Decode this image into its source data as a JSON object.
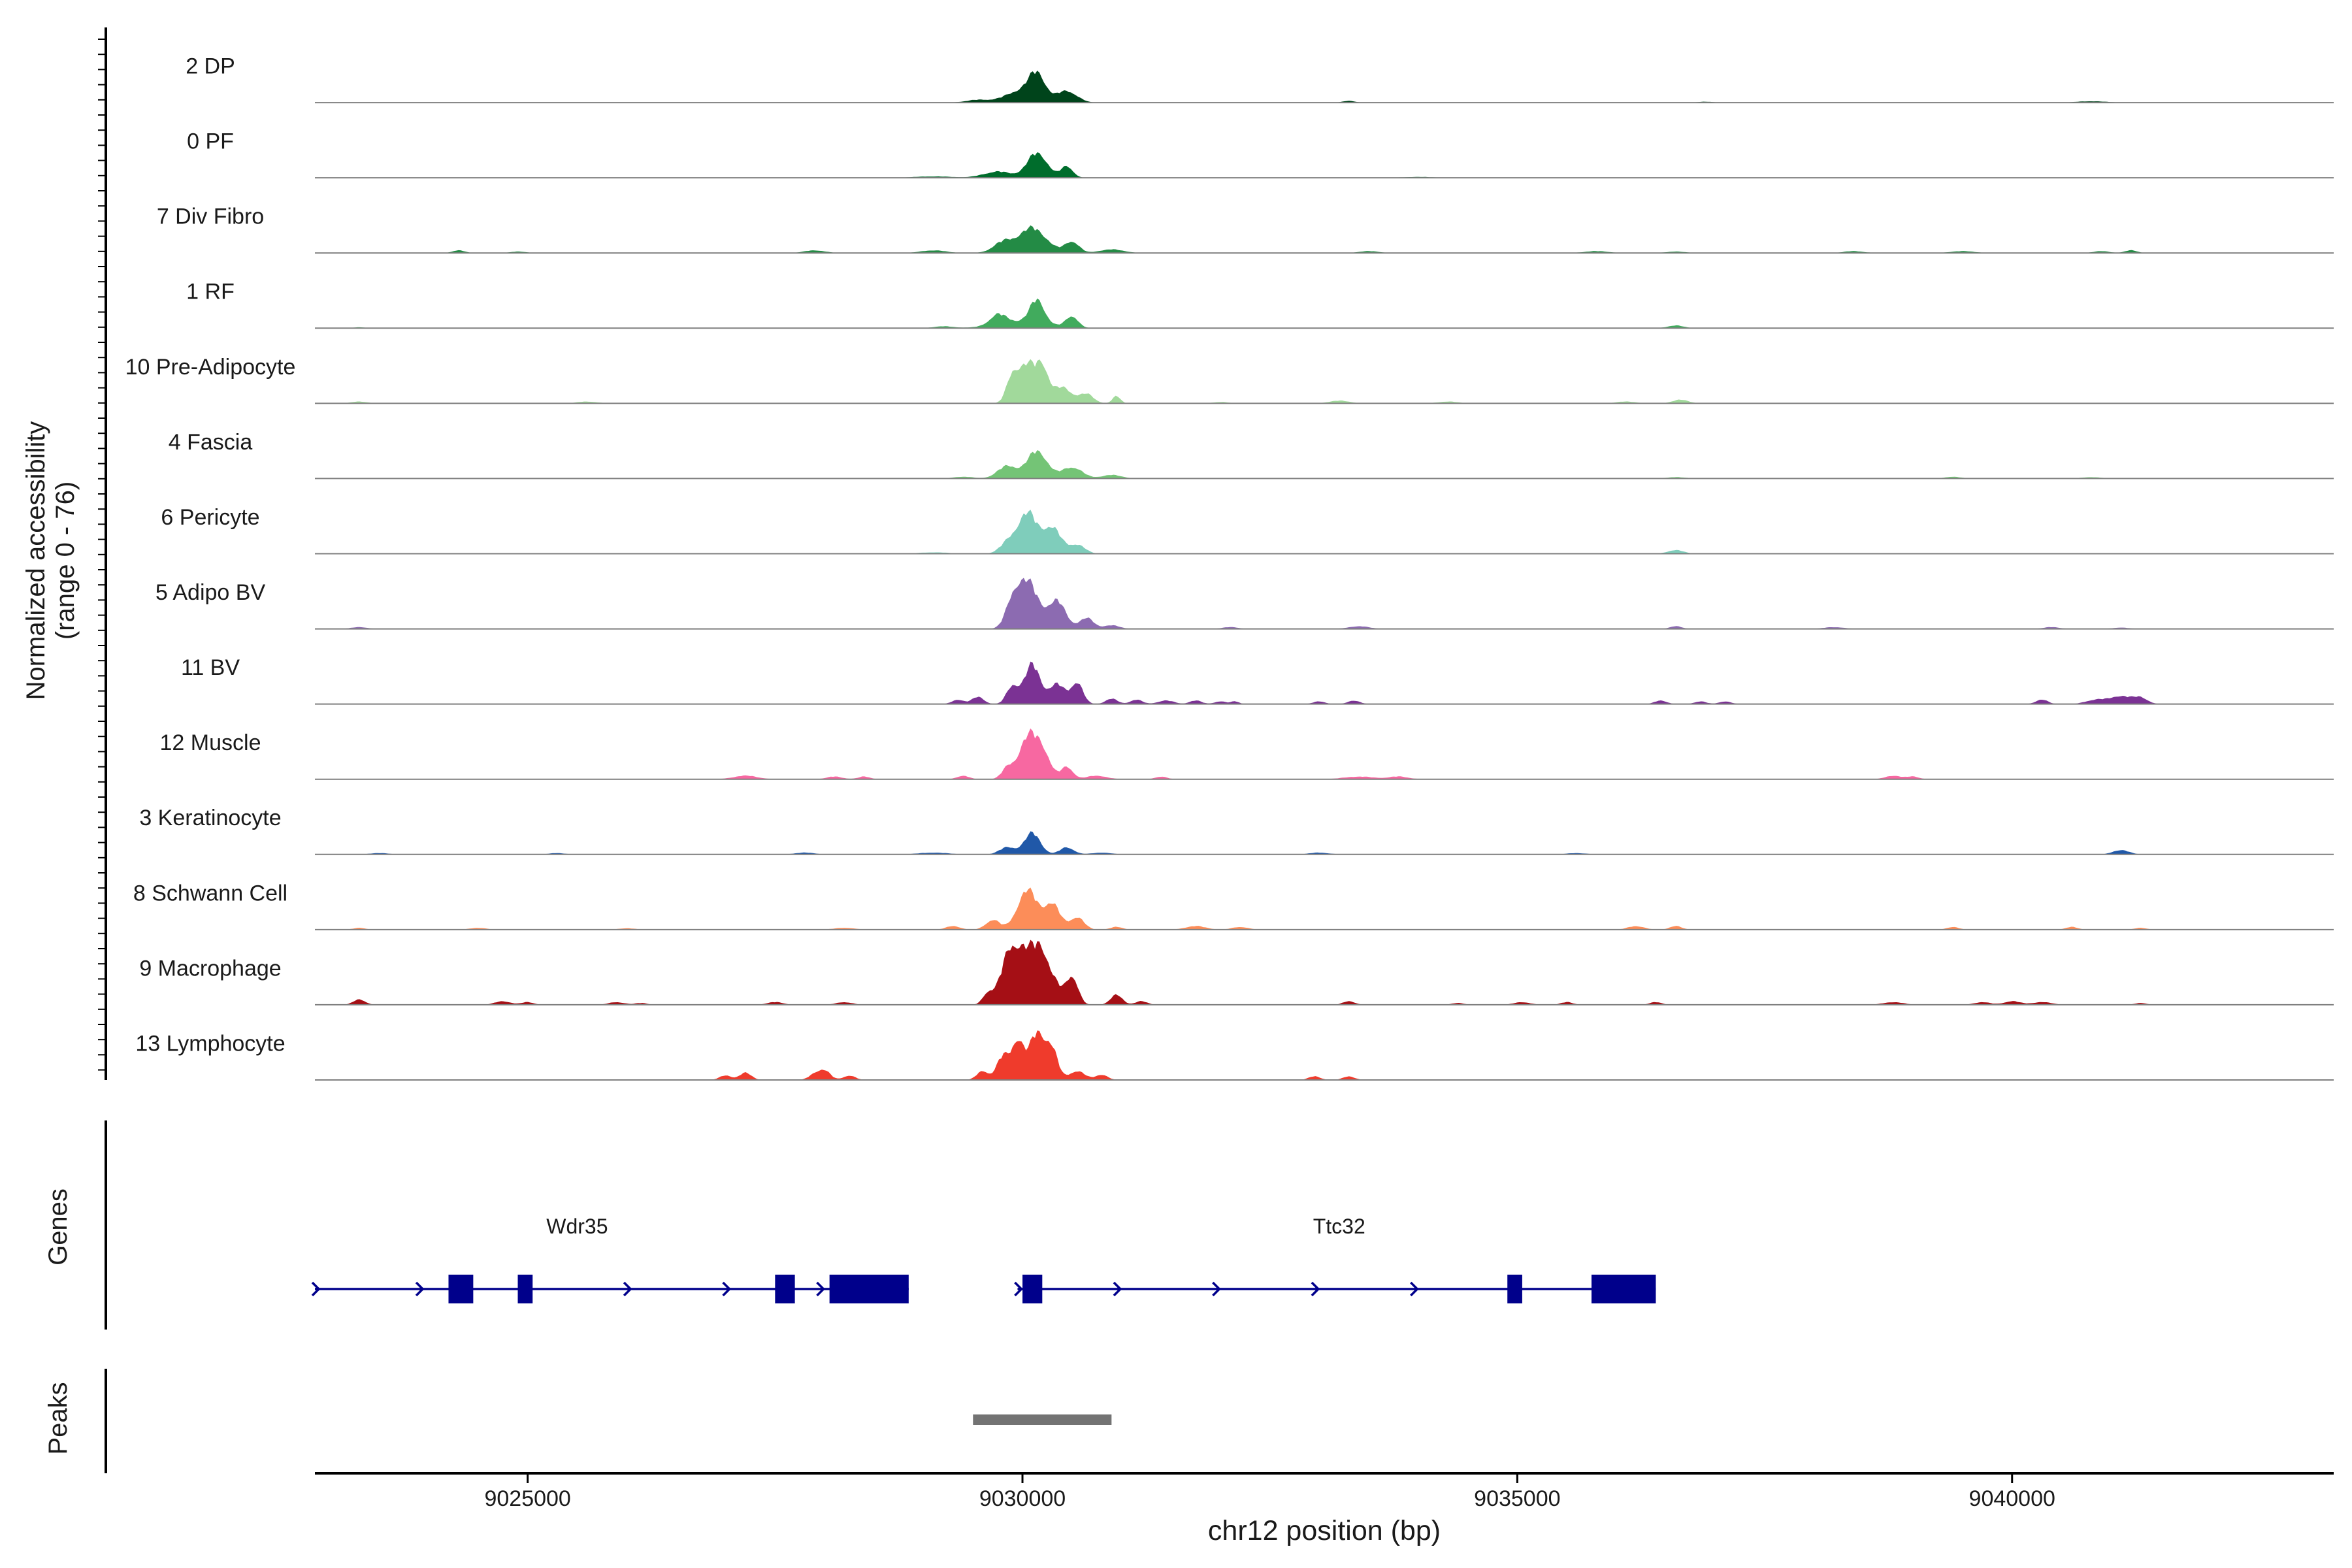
{
  "chart_data": {
    "type": "area",
    "ylabel": "Normalized accessibility\n(range 0 - 76)",
    "yrange": [
      0,
      76
    ],
    "xlabel": "chr12 position (bp)",
    "xlim": [
      9022850,
      9043250
    ],
    "xticks": [
      9025000,
      9030000,
      9035000,
      9040000
    ],
    "xtick_labels": [
      "9025000",
      "9030000",
      "9035000",
      "9040000"
    ],
    "tracks": [
      {
        "name": "2 DP",
        "color": "#00441b",
        "peaks": [
          [
            9030000,
            14,
            160
          ],
          [
            9030150,
            26,
            80
          ],
          [
            9030450,
            13,
            100
          ],
          [
            9029550,
            3,
            120
          ],
          [
            9033300,
            2,
            60
          ],
          [
            9036900,
            1,
            80
          ],
          [
            9040800,
            1.5,
            150
          ]
        ]
      },
      {
        "name": "0 PF",
        "color": "#006d2c",
        "peaks": [
          [
            9030150,
            28,
            100
          ],
          [
            9029750,
            7,
            140
          ],
          [
            9030450,
            13,
            60
          ],
          [
            9029100,
            1.5,
            200
          ],
          [
            9034000,
            1,
            150
          ]
        ]
      },
      {
        "name": "7 Div Fibro",
        "color": "#238b45",
        "peaks": [
          [
            9030100,
            28,
            140
          ],
          [
            9029800,
            11,
            100
          ],
          [
            9030500,
            13,
            70
          ],
          [
            9030900,
            4,
            120
          ],
          [
            9029100,
            3,
            120
          ],
          [
            9024300,
            3,
            60
          ],
          [
            9027900,
            3,
            100
          ],
          [
            9033500,
            2,
            100
          ],
          [
            9035800,
            2,
            120
          ],
          [
            9038400,
            2,
            100
          ],
          [
            9039500,
            2,
            120
          ],
          [
            9040900,
            2,
            80
          ],
          [
            9041200,
            3,
            60
          ],
          [
            9024900,
            1.5,
            80
          ],
          [
            9036600,
            1.5,
            100
          ]
        ]
      },
      {
        "name": "1 RF",
        "color": "#41ab5d",
        "peaks": [
          [
            9030150,
            26,
            70
          ],
          [
            9029750,
            11,
            80
          ],
          [
            9030500,
            13,
            60
          ],
          [
            9030000,
            8,
            250
          ],
          [
            9036600,
            3,
            80
          ],
          [
            9029200,
            2,
            100
          ],
          [
            9023300,
            1,
            60
          ]
        ]
      },
      {
        "name": "10 Pre-Adipocyte",
        "color": "#a1d99b",
        "peaks": [
          [
            9030050,
            42,
            80
          ],
          [
            9030200,
            38,
            60
          ],
          [
            9029900,
            30,
            60
          ],
          [
            9030400,
            18,
            100
          ],
          [
            9030650,
            10,
            70
          ],
          [
            9030950,
            8,
            40
          ],
          [
            9036650,
            4,
            80
          ],
          [
            9023300,
            2,
            80
          ],
          [
            9025600,
            2,
            100
          ],
          [
            9033200,
            3,
            100
          ],
          [
            9034300,
            2,
            100
          ],
          [
            9036100,
            2,
            100
          ],
          [
            9032000,
            1.5,
            80
          ]
        ]
      },
      {
        "name": "4 Fascia",
        "color": "#74c476",
        "peaks": [
          [
            9030150,
            31,
            100
          ],
          [
            9029850,
            14,
            100
          ],
          [
            9030500,
            13,
            100
          ],
          [
            9030900,
            4,
            100
          ],
          [
            9029400,
            2,
            100
          ],
          [
            9039400,
            2,
            80
          ],
          [
            9040800,
            1.5,
            100
          ],
          [
            9036600,
            1.5,
            100
          ]
        ]
      },
      {
        "name": "6 Pericyte",
        "color": "#7fcdbb",
        "peaks": [
          [
            9030050,
            45,
            100
          ],
          [
            9030300,
            28,
            90
          ],
          [
            9030550,
            10,
            80
          ],
          [
            9029850,
            11,
            80
          ],
          [
            9036600,
            4,
            80
          ],
          [
            9029100,
            1.5,
            150
          ]
        ]
      },
      {
        "name": "5 Adipo BV",
        "color": "#8c6bb1",
        "peaks": [
          [
            9030050,
            52,
            110
          ],
          [
            9029900,
            22,
            70
          ],
          [
            9030350,
            30,
            90
          ],
          [
            9030650,
            12,
            70
          ],
          [
            9030900,
            4,
            80
          ],
          [
            9023300,
            2,
            80
          ],
          [
            9032100,
            2,
            80
          ],
          [
            9033400,
            3,
            100
          ],
          [
            9036600,
            3,
            60
          ],
          [
            9038200,
            2,
            100
          ],
          [
            9040400,
            2,
            80
          ],
          [
            9041100,
            1.5,
            80
          ]
        ]
      },
      {
        "name": "11 BV",
        "color": "#7b3294",
        "peaks": [
          [
            9030100,
            44,
            80
          ],
          [
            9029900,
            20,
            60
          ],
          [
            9030350,
            22,
            80
          ],
          [
            9030550,
            24,
            60
          ],
          [
            9029550,
            8,
            60
          ],
          [
            9029350,
            5,
            60
          ],
          [
            9030900,
            6,
            60
          ],
          [
            9031150,
            5,
            60
          ],
          [
            9031450,
            4,
            80
          ],
          [
            9031750,
            4,
            60
          ],
          [
            9032000,
            3,
            60
          ],
          [
            9032150,
            3,
            40
          ],
          [
            9033000,
            3,
            60
          ],
          [
            9033350,
            4,
            60
          ],
          [
            9036450,
            4,
            60
          ],
          [
            9036850,
            3,
            60
          ],
          [
            9037100,
            3,
            60
          ],
          [
            9040300,
            5,
            60
          ],
          [
            9040850,
            5,
            100
          ],
          [
            9041100,
            9,
            100
          ],
          [
            9041300,
            7,
            70
          ]
        ]
      },
      {
        "name": "12 Muscle",
        "color": "#f768a1",
        "peaks": [
          [
            9030050,
            44,
            90
          ],
          [
            9030200,
            30,
            80
          ],
          [
            9030450,
            14,
            60
          ],
          [
            9029850,
            12,
            60
          ],
          [
            9029400,
            4,
            60
          ],
          [
            9030750,
            4,
            100
          ],
          [
            9031400,
            3,
            60
          ],
          [
            9027200,
            4,
            120
          ],
          [
            9028100,
            3,
            80
          ],
          [
            9028400,
            3,
            60
          ],
          [
            9033400,
            3,
            150
          ],
          [
            9033800,
            3,
            100
          ],
          [
            9038800,
            4,
            80
          ],
          [
            9039000,
            3,
            60
          ]
        ]
      },
      {
        "name": "3 Keratinocyte",
        "color": "#2058a8",
        "peaks": [
          [
            9030100,
            24,
            80
          ],
          [
            9029850,
            8,
            80
          ],
          [
            9030450,
            8,
            70
          ],
          [
            9030800,
            2,
            100
          ],
          [
            9029100,
            2,
            150
          ],
          [
            9027800,
            2,
            100
          ],
          [
            9033000,
            2,
            100
          ],
          [
            9041100,
            5,
            80
          ],
          [
            9023500,
            1.5,
            100
          ],
          [
            9025300,
            1.5,
            80
          ],
          [
            9035600,
            1.5,
            100
          ]
        ]
      },
      {
        "name": "8 Schwann Cell",
        "color": "#fc8d59",
        "peaks": [
          [
            9030050,
            44,
            100
          ],
          [
            9030300,
            28,
            80
          ],
          [
            9030550,
            14,
            70
          ],
          [
            9029700,
            11,
            70
          ],
          [
            9029300,
            4,
            70
          ],
          [
            9030950,
            3,
            60
          ],
          [
            9031750,
            4,
            100
          ],
          [
            9032200,
            3,
            80
          ],
          [
            9036200,
            4,
            80
          ],
          [
            9036600,
            4,
            60
          ],
          [
            9039400,
            3,
            60
          ],
          [
            9040600,
            3,
            60
          ],
          [
            9041300,
            2,
            60
          ],
          [
            9023300,
            2,
            60
          ],
          [
            9024500,
            2,
            80
          ],
          [
            9028200,
            2,
            100
          ],
          [
            9026000,
            1.5,
            80
          ]
        ]
      },
      {
        "name": "9 Macrophage",
        "color": "#a50f15",
        "peaks": [
          [
            9030000,
            60,
            140
          ],
          [
            9030200,
            44,
            80
          ],
          [
            9029850,
            26,
            80
          ],
          [
            9030500,
            33,
            60
          ],
          [
            9030350,
            14,
            60
          ],
          [
            9029650,
            12,
            50
          ],
          [
            9030950,
            11,
            60
          ],
          [
            9031200,
            4,
            60
          ],
          [
            9023300,
            6,
            60
          ],
          [
            9024750,
            4,
            80
          ],
          [
            9025000,
            3,
            60
          ],
          [
            9025900,
            3,
            80
          ],
          [
            9026150,
            2,
            60
          ],
          [
            9027500,
            3,
            80
          ],
          [
            9028200,
            3,
            80
          ],
          [
            9033300,
            4,
            60
          ],
          [
            9034400,
            2,
            60
          ],
          [
            9035050,
            3,
            80
          ],
          [
            9035500,
            3,
            60
          ],
          [
            9036400,
            3,
            60
          ],
          [
            9038800,
            3,
            100
          ],
          [
            9039700,
            3,
            80
          ],
          [
            9040000,
            4,
            80
          ],
          [
            9040300,
            3,
            100
          ],
          [
            9041300,
            2,
            60
          ]
        ]
      },
      {
        "name": "13 Lymphocyte",
        "color": "#ef3b2c",
        "peaks": [
          [
            9030150,
            53,
            80
          ],
          [
            9029950,
            44,
            60
          ],
          [
            9030300,
            30,
            60
          ],
          [
            9029800,
            26,
            60
          ],
          [
            9029600,
            10,
            60
          ],
          [
            9030550,
            10,
            80
          ],
          [
            9030800,
            6,
            60
          ],
          [
            9027200,
            8,
            60
          ],
          [
            9027000,
            5,
            60
          ],
          [
            9028000,
            10,
            60
          ],
          [
            9027900,
            6,
            60
          ],
          [
            9028250,
            5,
            60
          ],
          [
            9032950,
            4,
            60
          ],
          [
            9033300,
            4,
            60
          ]
        ]
      }
    ],
    "genes_label": "Genes",
    "genes": [
      {
        "name": "Wdr35",
        "start": 9022850,
        "end": 9028850,
        "strand": "+",
        "exons": [
          [
            9024200,
            9024450
          ],
          [
            9024900,
            9025050
          ],
          [
            9027500,
            9027700
          ],
          [
            9028050,
            9028850
          ]
        ],
        "arrows": [
          9022850,
          9023900,
          9026000,
          9027000,
          9027950
        ]
      },
      {
        "name": "Ttc32",
        "start": 9029950,
        "end": 9036400,
        "strand": "+",
        "exons": [
          [
            9030000,
            9030200
          ],
          [
            9034900,
            9035050
          ],
          [
            9035750,
            9036400
          ]
        ],
        "arrows": [
          9029950,
          9030950,
          9031950,
          9032950,
          9033950
        ]
      }
    ],
    "peaks_label": "Peaks",
    "peak_regions": [
      [
        9029500,
        9030900
      ]
    ],
    "gene_color": "#00008b",
    "peak_color": "#737373"
  }
}
